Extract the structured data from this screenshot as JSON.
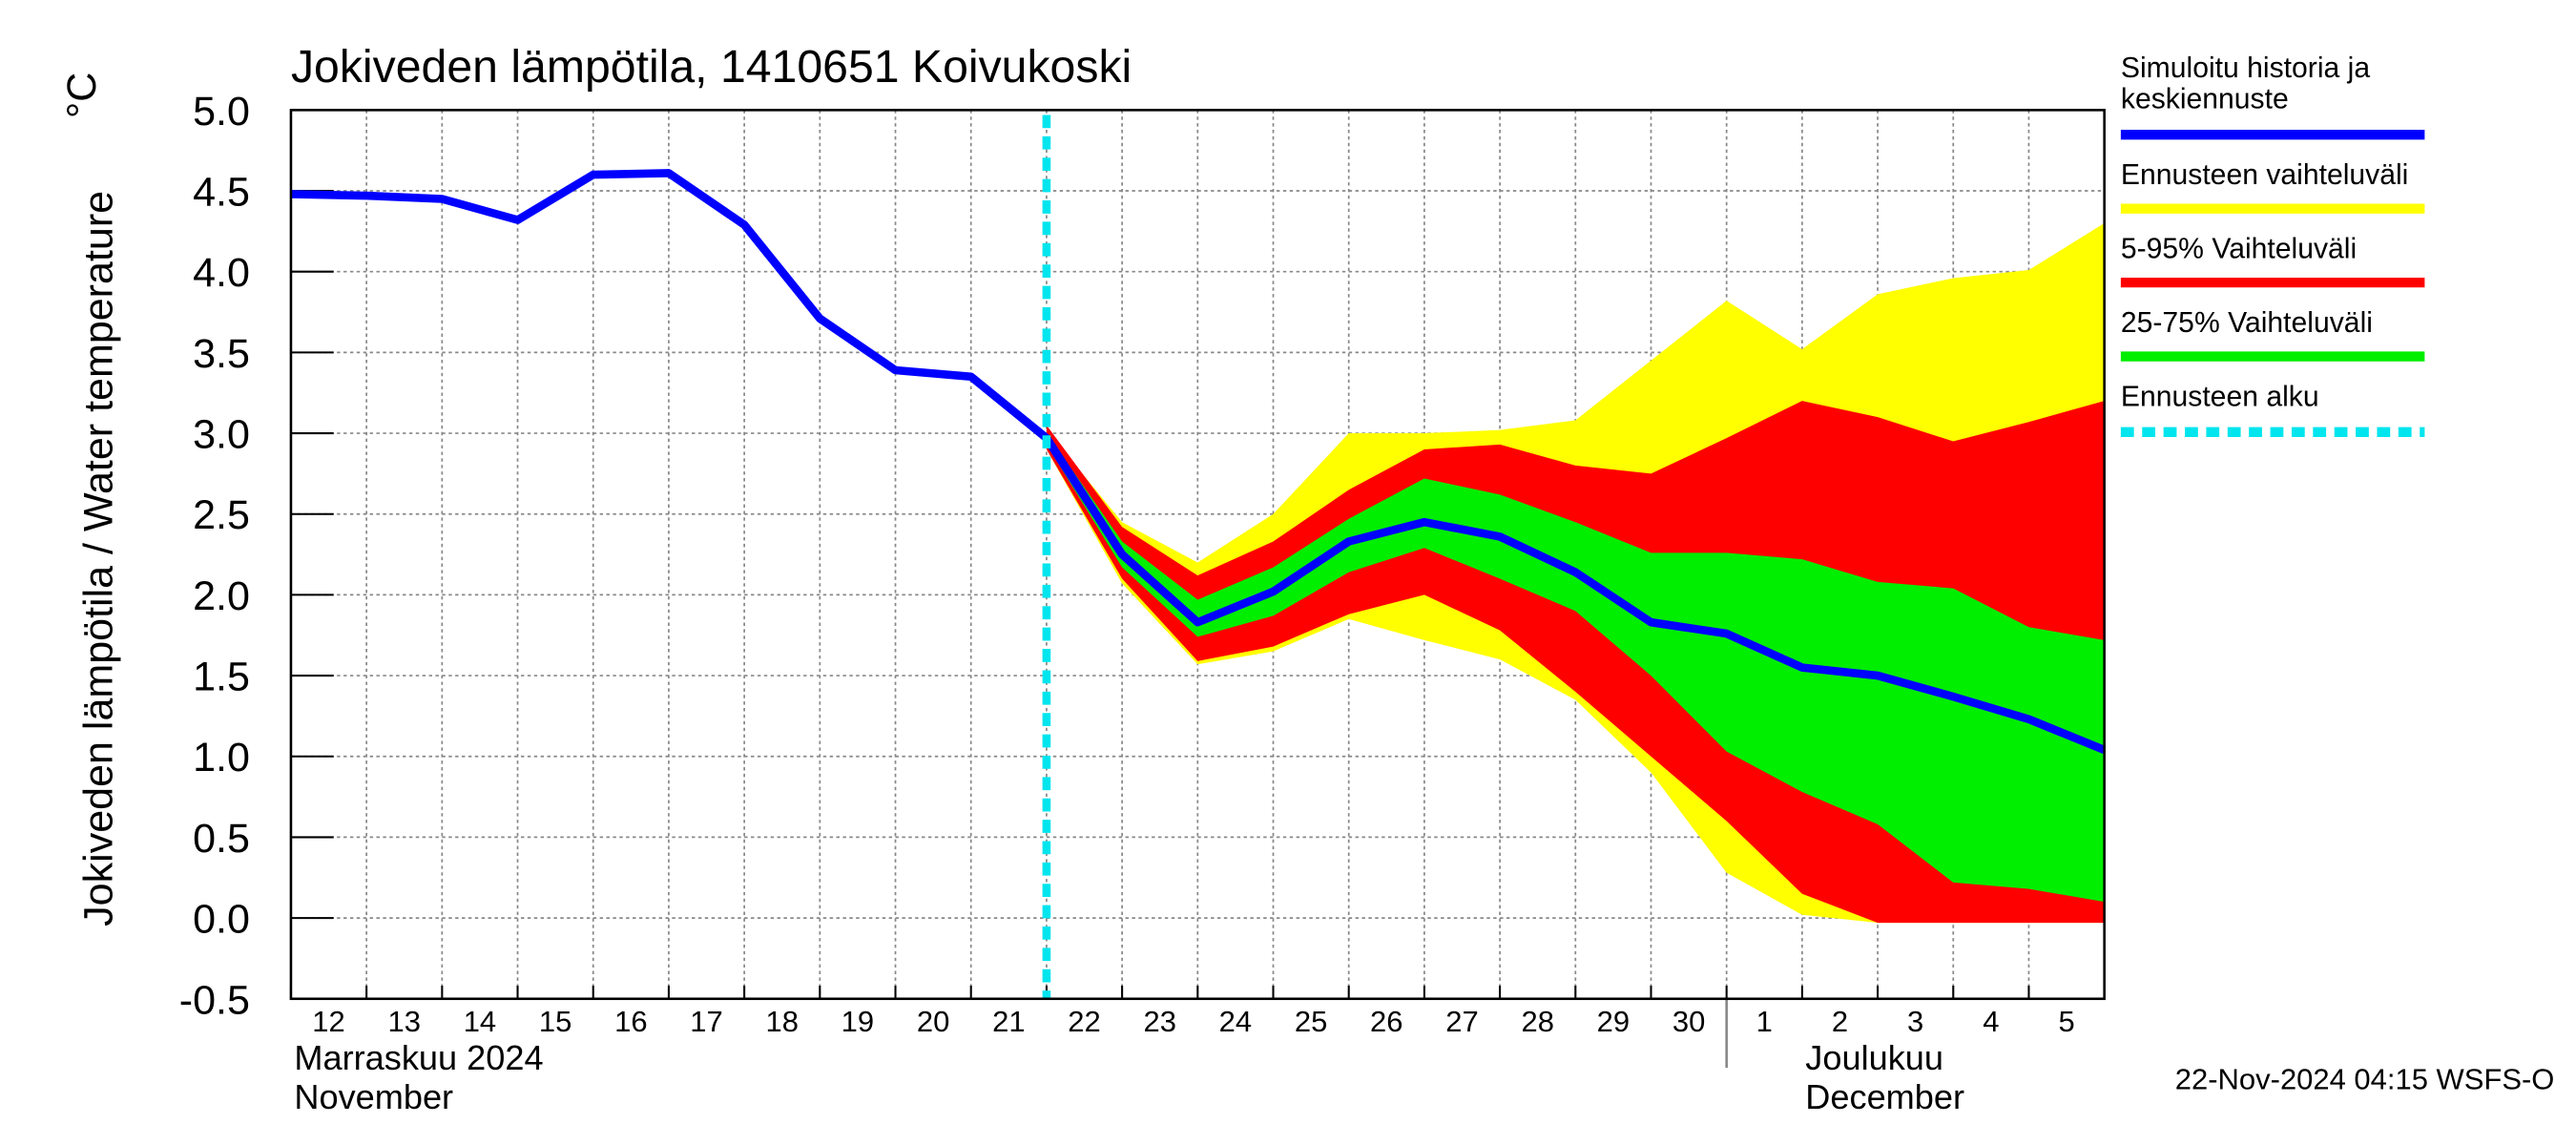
{
  "chart_data": {
    "type": "line",
    "title": "Jokiveden lämpötila, 1410651 Koivukoski",
    "y_label": "Jokiveden lämpötila / Water temperature",
    "y_unit": "°C",
    "footer": "22-Nov-2024 04:15 WSFS-O",
    "grid": true,
    "xlim": [
      "2024-11-12",
      "2024-12-06"
    ],
    "ylim": [
      -0.5,
      5.0
    ],
    "yticks": [
      {
        "value": -0.5,
        "label": "-0.5"
      },
      {
        "value": 0,
        "label": "0.0"
      },
      {
        "value": 0.5,
        "label": "0.5"
      },
      {
        "value": 1,
        "label": "1.0"
      },
      {
        "value": 1.5,
        "label": "1.5"
      },
      {
        "value": 2,
        "label": "2.0"
      },
      {
        "value": 2.5,
        "label": "2.5"
      },
      {
        "value": 3,
        "label": "3.0"
      },
      {
        "value": 3.5,
        "label": "3.5"
      },
      {
        "value": 4,
        "label": "4.0"
      },
      {
        "value": 4.5,
        "label": "4.5"
      },
      {
        "value": 5,
        "label": "5.0"
      }
    ],
    "xticks": [
      {
        "value": "2024-11-12",
        "label": "12"
      },
      {
        "value": "2024-11-13",
        "label": "13"
      },
      {
        "value": "2024-11-14",
        "label": "14"
      },
      {
        "value": "2024-11-15",
        "label": "15"
      },
      {
        "value": "2024-11-16",
        "label": "16"
      },
      {
        "value": "2024-11-17",
        "label": "17"
      },
      {
        "value": "2024-11-18",
        "label": "18"
      },
      {
        "value": "2024-11-19",
        "label": "19"
      },
      {
        "value": "2024-11-20",
        "label": "20"
      },
      {
        "value": "2024-11-21",
        "label": "21"
      },
      {
        "value": "2024-11-22",
        "label": "22"
      },
      {
        "value": "2024-11-23",
        "label": "23"
      },
      {
        "value": "2024-11-24",
        "label": "24"
      },
      {
        "value": "2024-11-25",
        "label": "25"
      },
      {
        "value": "2024-11-26",
        "label": "26"
      },
      {
        "value": "2024-11-27",
        "label": "27"
      },
      {
        "value": "2024-11-28",
        "label": "28"
      },
      {
        "value": "2024-11-29",
        "label": "29"
      },
      {
        "value": "2024-11-30",
        "label": "30"
      },
      {
        "value": "2024-12-01",
        "label": "1"
      },
      {
        "value": "2024-12-02",
        "label": "2"
      },
      {
        "value": "2024-12-03",
        "label": "3"
      },
      {
        "value": "2024-12-04",
        "label": "4"
      },
      {
        "value": "2024-12-05",
        "label": "5"
      }
    ],
    "month_labels": [
      {
        "x": "2024-11-12",
        "lines": [
          "Marraskuu 2024",
          "November"
        ]
      },
      {
        "x": "2024-12-01",
        "lines": [
          "Joulukuu",
          "December"
        ]
      }
    ],
    "x": [
      "2024-11-12",
      "2024-11-13",
      "2024-11-14",
      "2024-11-15",
      "2024-11-16",
      "2024-11-17",
      "2024-11-18",
      "2024-11-19",
      "2024-11-20",
      "2024-11-21",
      "2024-11-22",
      "2024-11-23",
      "2024-11-24",
      "2024-11-25",
      "2024-11-26",
      "2024-11-27",
      "2024-11-28",
      "2024-11-29",
      "2024-11-30",
      "2024-12-01",
      "2024-12-02",
      "2024-12-03",
      "2024-12-04",
      "2024-12-05",
      "2024-12-06"
    ],
    "bands": [
      {
        "name": "Ennusteen vaihteluväli",
        "color": "#ffff00",
        "low": [
          null,
          null,
          null,
          null,
          null,
          null,
          null,
          null,
          null,
          null,
          2.9,
          2.07,
          1.57,
          1.65,
          1.85,
          1.72,
          1.6,
          1.35,
          0.9,
          0.28,
          0.02,
          -0.03,
          -0.03,
          -0.03,
          -0.03
        ],
        "high": [
          null,
          null,
          null,
          null,
          null,
          null,
          null,
          null,
          null,
          null,
          3.02,
          2.45,
          2.2,
          2.5,
          3.0,
          3.0,
          3.02,
          3.08,
          3.45,
          3.82,
          3.52,
          3.86,
          3.96,
          4.01,
          4.3
        ]
      },
      {
        "name": "5-95% Vaihteluväli",
        "color": "#ff0000",
        "low": [
          null,
          null,
          null,
          null,
          null,
          null,
          null,
          null,
          null,
          null,
          2.9,
          2.1,
          1.59,
          1.68,
          1.88,
          2.0,
          1.78,
          1.4,
          1.0,
          0.6,
          0.15,
          -0.03,
          -0.03,
          -0.03,
          -0.03
        ],
        "high": [
          null,
          null,
          null,
          null,
          null,
          null,
          null,
          null,
          null,
          null,
          3.05,
          2.42,
          2.12,
          2.33,
          2.65,
          2.9,
          2.93,
          2.8,
          2.75,
          2.97,
          3.2,
          3.1,
          2.95,
          3.07,
          3.2
        ]
      },
      {
        "name": "25-75% Vaihteluväli",
        "color": "#00ee00",
        "low": [
          null,
          null,
          null,
          null,
          null,
          null,
          null,
          null,
          null,
          null,
          2.93,
          2.17,
          1.74,
          1.87,
          2.14,
          2.29,
          2.1,
          1.9,
          1.5,
          1.03,
          0.78,
          0.58,
          0.22,
          0.18,
          0.1
        ],
        "high": [
          null,
          null,
          null,
          null,
          null,
          null,
          null,
          null,
          null,
          null,
          3.0,
          2.33,
          1.97,
          2.17,
          2.47,
          2.72,
          2.62,
          2.45,
          2.26,
          2.26,
          2.22,
          2.08,
          2.04,
          1.8,
          1.72
        ]
      }
    ],
    "series": [
      {
        "name": "Simuloitu historia ja keskiennuste",
        "color": "#0000ff",
        "values": [
          4.48,
          4.47,
          4.45,
          4.32,
          4.6,
          4.61,
          4.29,
          3.71,
          3.39,
          3.35,
          2.97,
          2.25,
          1.83,
          2.02,
          2.33,
          2.45,
          2.36,
          2.14,
          1.83,
          1.76,
          1.55,
          1.5,
          1.37,
          1.23,
          1.04
        ]
      }
    ],
    "forecast_start": {
      "name": "Ennusteen alku",
      "x": "2024-11-22",
      "color": "#00e5ee"
    }
  }
}
